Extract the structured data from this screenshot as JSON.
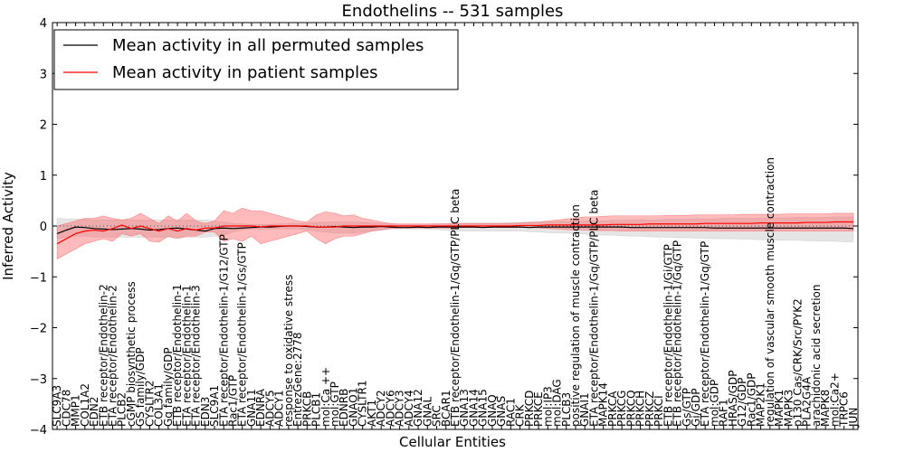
{
  "chart_data": {
    "type": "line",
    "title": "Endothelins -- 531 samples",
    "xlabel": "Cellular Entities",
    "ylabel": "Inferred Activity",
    "ylim": [
      -4,
      4
    ],
    "yticks": [
      -4,
      -3,
      -2,
      -1,
      0,
      1,
      2,
      3,
      4
    ],
    "grid": false,
    "legend_position": "top-left",
    "categories": [
      "SLC9A3",
      "CDC78",
      "MMP1",
      "COL1A2",
      "EDN2",
      "ETB receptor/Endothelin-2",
      "ETA receptor/Endothelin-2",
      "PLCB2",
      "cGMP biosynthetic process",
      "GS family/GDP",
      "CYSLTR2",
      "COL3A1",
      "Gq family/GDP",
      "ETB receptor/Endothelin-1",
      "ETA receptor/Endothelin-1",
      "ETA receptor/Endothelin-3",
      "EDN3",
      "SLC9A1",
      "ETA receptor/Endothelin-1/G12/GTP",
      "Rac1/GTP",
      "ETA receptor/Endothelin-1/Gs/GTP",
      "GNA11",
      "EDNRA",
      "ADCY5",
      "ADCY1",
      "response to oxidative stress",
      "EntrezGene:2778",
      "PRKCB",
      "PLCB1",
      "mol:Ca ++",
      "mol:GTP",
      "EDNRB",
      "GNAO1",
      "CYSLTR1",
      "AKT1",
      "ADCY2",
      "ADCY6",
      "ADCY3",
      "ADCY4",
      "GNA12",
      "GNAL",
      "SRC",
      "BCAR1",
      "ETB receptor/Endothelin-1/Gq/GTP/PLC beta",
      "GNA13",
      "GNA14",
      "GNA15",
      "GNAQ",
      "GNAS",
      "RAC1",
      "CRK",
      "PRKCD",
      "PRKCE",
      "mol:IP3",
      "mol:DAG",
      "PLCB3",
      "positive regulation of muscle contraction",
      "GNAI1",
      "ETA receptor/Endothelin-1/Gq/GTP/PLC beta",
      "MAPK14",
      "PRKCA",
      "PRKCG",
      "PRKCQ",
      "PRKCH",
      "PRKCZ",
      "PRKCI",
      "ETB receptor/Endothelin-1/Gi/GTP",
      "ETB receptor/Endothelin-1/Gq/GTP",
      "Gs/GTP",
      "Gi/GDP",
      "ETA receptor/Endothelin-1/Gq/GTP",
      "mol:GDP",
      "RAF1",
      "HRAS/GDP",
      "G12/GDP",
      "Rac1/GDP",
      "MAP2K1",
      "regulation of vascular smooth muscle contraction",
      "MAPK1",
      "MAPK3",
      "p130 Cas/CRK/Src/PYK2",
      "PLA2G4A",
      "arachidonic acid secretion",
      "MAPK8",
      "mol:Ca2+",
      "TRPC6",
      "JUN"
    ],
    "series": [
      {
        "name": "Mean activity in all permuted samples",
        "color": "#000000",
        "values": [
          -0.15,
          -0.08,
          -0.02,
          -0.03,
          -0.05,
          -0.06,
          -0.07,
          -0.06,
          -0.05,
          -0.06,
          -0.08,
          -0.07,
          -0.05,
          -0.04,
          -0.06,
          -0.08,
          -0.1,
          -0.05,
          -0.04,
          -0.05,
          -0.04,
          -0.03,
          -0.02,
          -0.02,
          -0.01,
          0.0,
          0.0,
          -0.01,
          -0.02,
          -0.02,
          -0.01,
          -0.02,
          -0.03,
          -0.02,
          -0.02,
          -0.01,
          -0.02,
          -0.03,
          -0.03,
          -0.02,
          -0.03,
          -0.02,
          -0.02,
          -0.02,
          -0.02,
          -0.02,
          -0.03,
          -0.02,
          -0.02,
          -0.02,
          -0.02,
          -0.03,
          -0.02,
          -0.02,
          -0.02,
          -0.02,
          -0.02,
          -0.02,
          -0.02,
          -0.02,
          -0.02,
          -0.02,
          -0.03,
          -0.03,
          -0.03,
          -0.03,
          -0.03,
          -0.03,
          -0.03,
          -0.03,
          -0.03,
          -0.04,
          -0.04,
          -0.04,
          -0.04,
          -0.04,
          -0.04,
          -0.04,
          -0.04,
          -0.04,
          -0.04,
          -0.04,
          -0.04,
          -0.04,
          -0.04,
          -0.04,
          -0.05
        ],
        "lower": [
          -0.25,
          -0.22,
          -0.2,
          -0.2,
          -0.22,
          -0.22,
          -0.22,
          -0.22,
          -0.22,
          -0.22,
          -0.22,
          -0.22,
          -0.22,
          -0.22,
          -0.22,
          -0.22,
          -0.22,
          -0.2,
          -0.18,
          -0.12,
          -0.08,
          -0.06,
          -0.06,
          -0.06,
          -0.06,
          -0.06,
          -0.06,
          -0.08,
          -0.1,
          -0.12,
          -0.14,
          -0.14,
          -0.14,
          -0.12,
          -0.1,
          -0.08,
          -0.06,
          -0.06,
          -0.06,
          -0.06,
          -0.06,
          -0.07,
          -0.08,
          -0.1,
          -0.1,
          -0.1,
          -0.1,
          -0.1,
          -0.1,
          -0.1,
          -0.1,
          -0.11,
          -0.12,
          -0.13,
          -0.14,
          -0.14,
          -0.15,
          -0.16,
          -0.17,
          -0.18,
          -0.18,
          -0.19,
          -0.2,
          -0.2,
          -0.21,
          -0.22,
          -0.22,
          -0.23,
          -0.23,
          -0.24,
          -0.24,
          -0.25,
          -0.25,
          -0.25,
          -0.26,
          -0.26,
          -0.27,
          -0.27,
          -0.28,
          -0.28,
          -0.28,
          -0.29,
          -0.29,
          -0.3,
          -0.3,
          -0.31,
          -0.31
        ],
        "upper": [
          0.15,
          0.14,
          0.14,
          0.13,
          0.12,
          0.12,
          0.12,
          0.12,
          0.12,
          0.12,
          0.12,
          0.12,
          0.12,
          0.12,
          0.12,
          0.12,
          0.12,
          0.1,
          0.08,
          0.05,
          0.04,
          0.03,
          0.03,
          0.03,
          0.04,
          0.05,
          0.05,
          0.06,
          0.07,
          0.08,
          0.08,
          0.08,
          0.08,
          0.07,
          0.06,
          0.05,
          0.04,
          0.04,
          0.04,
          0.04,
          0.04,
          0.05,
          0.05,
          0.05,
          0.06,
          0.06,
          0.06,
          0.06,
          0.06,
          0.07,
          0.07,
          0.08,
          0.08,
          0.08,
          0.09,
          0.09,
          0.09,
          0.1,
          0.1,
          0.1,
          0.11,
          0.11,
          0.11,
          0.12,
          0.12,
          0.12,
          0.13,
          0.13,
          0.13,
          0.14,
          0.14,
          0.14,
          0.15,
          0.15,
          0.15,
          0.15,
          0.16,
          0.16,
          0.16,
          0.16,
          0.17,
          0.17,
          0.17,
          0.17,
          0.18,
          0.18,
          0.18
        ]
      },
      {
        "name": "Mean activity in patient samples",
        "color": "#ff0000",
        "values": [
          -0.35,
          -0.25,
          -0.15,
          -0.1,
          -0.08,
          -0.1,
          -0.05,
          0.02,
          -0.05,
          0.0,
          -0.05,
          -0.1,
          -0.05,
          -0.1,
          -0.05,
          -0.08,
          -0.04,
          -0.04,
          0.0,
          0.0,
          0.0,
          0.0,
          -0.02,
          0.0,
          0.0,
          0.0,
          0.0,
          0.0,
          -0.02,
          -0.02,
          -0.02,
          0.0,
          0.0,
          0.0,
          0.0,
          0.0,
          0.0,
          0.0,
          0.0,
          0.0,
          0.0,
          0.0,
          0.0,
          0.0,
          0.0,
          0.0,
          0.0,
          0.0,
          0.0,
          0.0,
          0.01,
          0.01,
          0.01,
          0.02,
          0.02,
          0.02,
          0.02,
          0.02,
          0.02,
          0.02,
          0.03,
          0.03,
          0.03,
          0.03,
          0.04,
          0.04,
          0.04,
          0.04,
          0.04,
          0.04,
          0.05,
          0.05,
          0.05,
          0.05,
          0.05,
          0.05,
          0.06,
          0.06,
          0.06,
          0.06,
          0.06,
          0.07,
          0.07,
          0.07,
          0.08,
          0.08,
          0.08
        ],
        "lower": [
          -0.65,
          -0.55,
          -0.45,
          -0.35,
          -0.3,
          -0.25,
          -0.3,
          -0.15,
          -0.2,
          -0.15,
          -0.3,
          -0.32,
          -0.2,
          -0.25,
          -0.2,
          -0.2,
          -0.12,
          -0.12,
          -0.3,
          -0.25,
          -0.3,
          -0.2,
          -0.35,
          -0.3,
          -0.25,
          -0.2,
          -0.15,
          -0.1,
          -0.25,
          -0.35,
          -0.25,
          -0.2,
          -0.2,
          -0.15,
          -0.1,
          -0.08,
          -0.05,
          -0.04,
          -0.04,
          -0.04,
          -0.04,
          -0.04,
          -0.04,
          -0.04,
          -0.03,
          -0.03,
          -0.03,
          -0.03,
          -0.03,
          -0.03,
          -0.03,
          -0.03,
          -0.04,
          -0.05,
          -0.06,
          -0.07,
          -0.08,
          -0.08,
          -0.09,
          -0.09,
          -0.09,
          -0.1,
          -0.1,
          -0.1,
          -0.1,
          -0.1,
          -0.1,
          -0.1,
          -0.1,
          -0.1,
          -0.1,
          -0.1,
          -0.1,
          -0.1,
          -0.1,
          -0.1,
          -0.1,
          -0.1,
          -0.1,
          -0.1,
          -0.1,
          -0.1,
          -0.1,
          -0.1,
          -0.1,
          -0.1,
          -0.1
        ],
        "upper": [
          0.0,
          0.05,
          0.1,
          0.15,
          0.15,
          0.2,
          0.15,
          0.12,
          0.15,
          0.25,
          0.15,
          0.05,
          0.2,
          0.1,
          0.25,
          0.1,
          0.05,
          0.1,
          0.3,
          0.25,
          0.35,
          0.3,
          0.3,
          0.25,
          0.2,
          0.15,
          0.1,
          0.08,
          0.22,
          0.28,
          0.25,
          0.2,
          0.22,
          0.15,
          0.12,
          0.08,
          0.05,
          0.04,
          0.04,
          0.04,
          0.04,
          0.04,
          0.04,
          0.05,
          0.05,
          0.05,
          0.05,
          0.05,
          0.05,
          0.05,
          0.06,
          0.07,
          0.08,
          0.1,
          0.12,
          0.14,
          0.16,
          0.18,
          0.18,
          0.19,
          0.2,
          0.2,
          0.2,
          0.2,
          0.2,
          0.2,
          0.21,
          0.21,
          0.21,
          0.22,
          0.22,
          0.22,
          0.22,
          0.22,
          0.23,
          0.23,
          0.23,
          0.23,
          0.23,
          0.24,
          0.24,
          0.24,
          0.24,
          0.24,
          0.25,
          0.25,
          0.25
        ]
      }
    ]
  }
}
